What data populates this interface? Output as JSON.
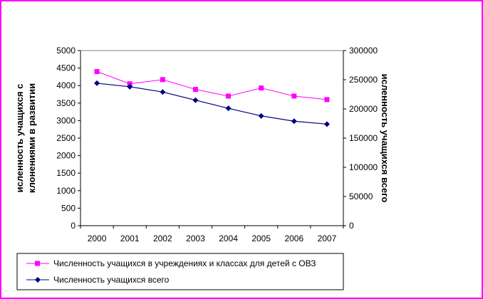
{
  "chart_data": {
    "type": "line",
    "x": [
      "2000",
      "2001",
      "2002",
      "2003",
      "2004",
      "2005",
      "2006",
      "2007"
    ],
    "left_axis": {
      "label": "исленность учащихся с\nклонениями в развитии",
      "ylim": [
        0,
        5000
      ],
      "ticks": [
        "0",
        "500",
        "1000",
        "1500",
        "2000",
        "2500",
        "3000",
        "3500",
        "4000",
        "4500",
        "5000"
      ]
    },
    "right_axis": {
      "label": "исленность учащихся всего",
      "ylim": [
        0,
        300000
      ],
      "ticks": [
        "0",
        "50000",
        "100000",
        "150000",
        "200000",
        "250000",
        "300000"
      ]
    },
    "series": [
      {
        "name": "Численность учащихся в учреждениях и классах для детей с ОВЗ",
        "axis": "left",
        "color": "#ff00ff",
        "marker": "square",
        "values": [
          4400,
          4050,
          4170,
          3890,
          3700,
          3930,
          3700,
          3600
        ]
      },
      {
        "name": "Численность учащихся всего",
        "axis": "right",
        "color": "#000080",
        "marker": "diamond",
        "values": [
          244000,
          238000,
          229000,
          215000,
          201000,
          188000,
          179000,
          174000
        ]
      }
    ],
    "grid": false,
    "legend_position": "bottom"
  },
  "colors": {
    "frame": "#ff00ff",
    "axis": "#000000"
  }
}
